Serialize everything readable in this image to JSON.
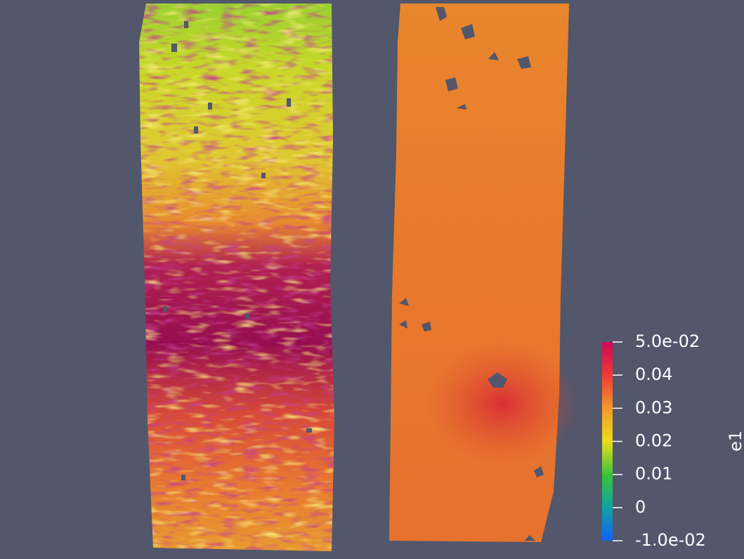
{
  "colorbar": {
    "title": "e1",
    "range": [
      -0.01,
      0.05
    ],
    "ticks": [
      {
        "value": 0.05,
        "label": "5.0e-02"
      },
      0.04,
      0.03,
      0.02,
      0.01,
      0,
      {
        "value": -0.01,
        "label": "-1.0e-02"
      }
    ]
  }
}
